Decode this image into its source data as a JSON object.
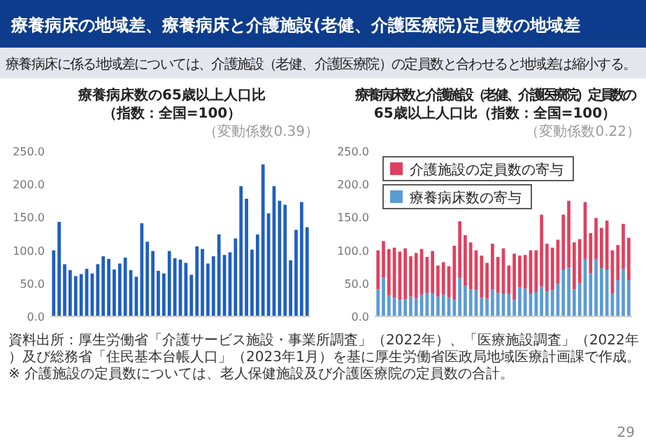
{
  "chart_data": [
    {
      "type": "bar",
      "title": "療養病床数の65歳以上人口比（指数：全国=100）",
      "annotations": [
        "療養病床の地域差、療養病床と介護施設(老健、介護医療院)定員数の地域差",
        "療養病床に係る地域差については、介護施設（老健、介護医療院）の定員数と合わせると地域差は縮小する。",
        "（変動係数0.39）",
        "資料出所：厚生労働省「介護サービス施設・事業所調査」（2022年）、「医療施設調査」（2022年）及び総務省「住民基本台帳人口」（2023年1月）を基に厚生労働省医政局地域医療計画課で作成。",
        "※ 介護施設の定員数については、老人保健施設及び介護医療院の定員数の合計。",
        "29"
      ],
      "categories": [
        null,
        null,
        null,
        null,
        null,
        null,
        null,
        null,
        null,
        null,
        null,
        null,
        null,
        null,
        null,
        null,
        null,
        null,
        null,
        null,
        null,
        null,
        null,
        null,
        null,
        null,
        null,
        null,
        null,
        null,
        null,
        null,
        null,
        null,
        null,
        null,
        null,
        null,
        null,
        null,
        null,
        null,
        null,
        null,
        null,
        null,
        null
      ],
      "values": [
        100,
        143,
        79,
        70,
        61,
        64,
        72,
        65,
        79,
        91,
        87,
        71,
        80,
        89,
        70,
        60,
        141,
        113,
        99,
        69,
        65,
        99,
        88,
        86,
        81,
        63,
        106,
        102,
        80,
        91,
        124,
        93,
        97,
        118,
        197,
        178,
        101,
        124,
        230,
        156,
        197,
        175,
        169,
        85,
        131,
        173,
        135
      ],
      "color": "#1f5fbf",
      "ylim": [
        0,
        250
      ],
      "yticks": [
        {
          "value": 0,
          "label": "0.0"
        },
        {
          "value": 50,
          "label": "50.0"
        },
        {
          "value": 100,
          "label": "100.0"
        },
        {
          "value": 150,
          "label": "150.0"
        },
        {
          "value": 200,
          "label": "200.0"
        },
        {
          "value": 250,
          "label": "250.0"
        }
      ]
    },
    {
      "type": "bar",
      "title": "療養病床数と介護施設（老健、介護医療院）定員数の65歳以上人口比（指数：全国=100）",
      "annotations": [
        "（変動係数0.22）"
      ],
      "stacked": true,
      "legend": "top left",
      "categories": [
        null,
        null,
        null,
        null,
        null,
        null,
        null,
        null,
        null,
        null,
        null,
        null,
        null,
        null,
        null,
        null,
        null,
        null,
        null,
        null,
        null,
        null,
        null,
        null,
        null,
        null,
        null,
        null,
        null,
        null,
        null,
        null,
        null,
        null,
        null,
        null,
        null,
        null,
        null,
        null,
        null,
        null,
        null,
        null,
        null,
        null,
        null
      ],
      "series": [
        {
          "name": "療養病床数の寄与",
          "color": "#5b9bd5",
          "values": [
            41,
            59,
            32,
            28,
            25,
            26,
            30,
            27,
            33,
            36,
            35,
            30,
            33,
            28,
            25,
            58,
            46,
            41,
            40,
            28,
            27,
            41,
            36,
            34,
            34,
            25,
            44,
            42,
            34,
            37,
            45,
            38,
            40,
            49,
            71,
            74,
            41,
            50,
            87,
            65,
            87,
            73,
            71,
            35,
            55,
            72,
            55
          ]
        },
        {
          "name": "介護施設の定員数の寄与",
          "color": "#e0405f",
          "values": [
            59,
            55,
            70,
            76,
            73,
            77,
            61,
            69,
            69,
            54,
            64,
            47,
            49,
            48,
            82,
            86,
            77,
            71,
            60,
            64,
            54,
            69,
            54,
            69,
            43,
            70,
            48,
            51,
            66,
            63,
            109,
            72,
            64,
            67,
            83,
            101,
            71,
            67,
            86,
            61,
            62,
            61,
            74,
            65,
            53,
            68,
            64
          ]
        }
      ],
      "ylim": [
        0,
        250
      ],
      "yticks": [
        {
          "value": 0,
          "label": "0.0"
        },
        {
          "value": 50,
          "label": "50.0"
        },
        {
          "value": 100,
          "label": "100.0"
        },
        {
          "value": 150,
          "label": "150.0"
        },
        {
          "value": 200,
          "label": "200.0"
        },
        {
          "value": 250,
          "label": "250.0"
        }
      ]
    }
  ]
}
